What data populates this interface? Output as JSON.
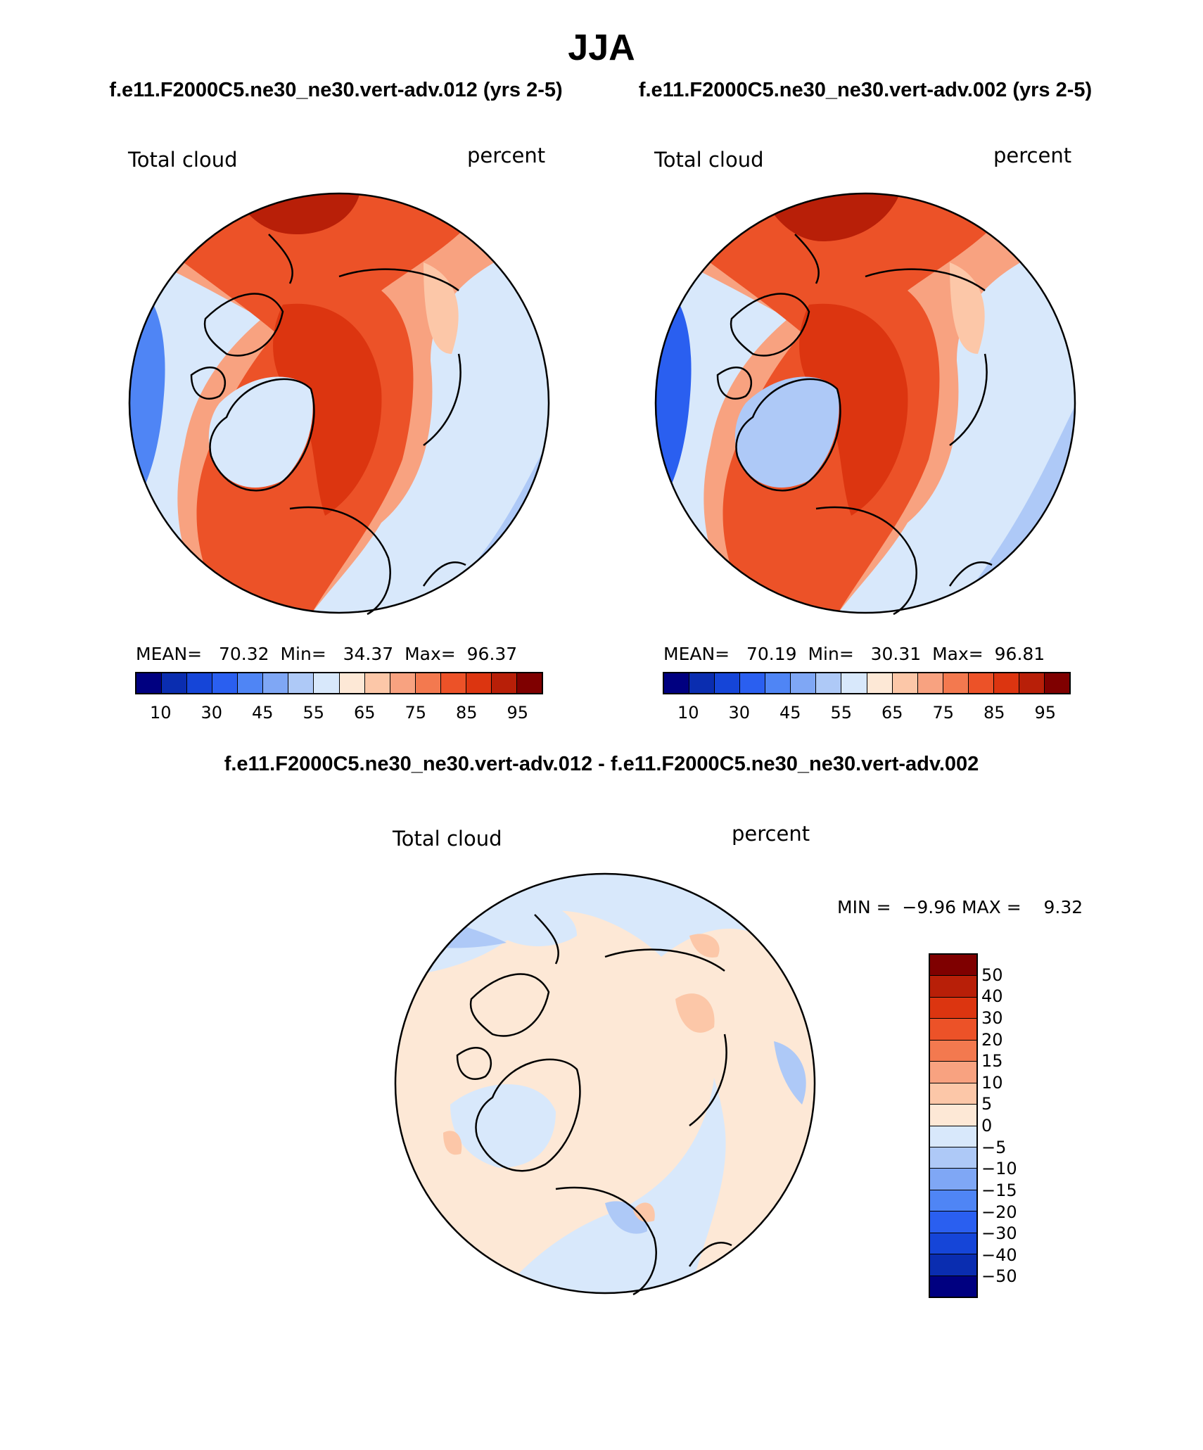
{
  "title": "JJA",
  "panels": [
    {
      "case_title": "f.e11.F2000C5.ne30_ne30.vert-adv.012 (yrs 2-5)",
      "variable": "Total cloud",
      "units": "percent",
      "stats": {
        "mean_label": "MEAN=",
        "mean": "70.32",
        "min_label": "Min=",
        "min": "34.37",
        "max_label": "Max=",
        "max": "96.37"
      }
    },
    {
      "case_title": "f.e11.F2000C5.ne30_ne30.vert-adv.002 (yrs 2-5)",
      "variable": "Total cloud",
      "units": "percent",
      "stats": {
        "mean_label": "MEAN=",
        "mean": "70.19",
        "min_label": "Min=",
        "min": "30.31",
        "max_label": "Max=",
        "max": "96.81"
      }
    }
  ],
  "abs_colorbar": {
    "tick_labels": [
      "10",
      "30",
      "45",
      "55",
      "65",
      "75",
      "85",
      "95"
    ],
    "colors": [
      "#000080",
      "#0a2db0",
      "#1545d8",
      "#2a5ff0",
      "#4f85f5",
      "#7fa7f5",
      "#aec9f7",
      "#d8e8fb",
      "#fde8d6",
      "#fcc7a8",
      "#f8a280",
      "#f3794f",
      "#ec5228",
      "#dc3510",
      "#b81f08",
      "#7f0000"
    ]
  },
  "difference": {
    "title": "f.e11.F2000C5.ne30_ne30.vert-adv.012 - f.e11.F2000C5.ne30_ne30.vert-adv.002",
    "variable": "Total cloud",
    "units": "percent",
    "min_max": "MIN =  −9.96 MAX =    9.32",
    "colorbar": {
      "tick_labels": [
        "50",
        "40",
        "30",
        "20",
        "15",
        "10",
        "5",
        "0",
        "−5",
        "−10",
        "−15",
        "−20",
        "−30",
        "−40",
        "−50"
      ],
      "colors": [
        "#7f0000",
        "#b81f08",
        "#dc3510",
        "#ec5228",
        "#f3794f",
        "#f8a280",
        "#fcc7a8",
        "#fde8d6",
        "#d8e8fb",
        "#aec9f7",
        "#7fa7f5",
        "#4f85f5",
        "#2a5ff0",
        "#1545d8",
        "#0a2db0",
        "#000080"
      ]
    }
  },
  "map_colors": {
    "dark_red": "#b81f08",
    "red": "#dc3510",
    "orange_red": "#ec5228",
    "orange": "#f3794f",
    "salmon": "#f8a280",
    "peach": "#fcc7a8",
    "light_peach": "#fde8d6",
    "light_blue": "#d8e8fb",
    "pale_blue": "#aec9f7",
    "blue": "#7fa7f5",
    "mid_blue": "#4f85f5",
    "deep_blue": "#2a5ff0"
  }
}
